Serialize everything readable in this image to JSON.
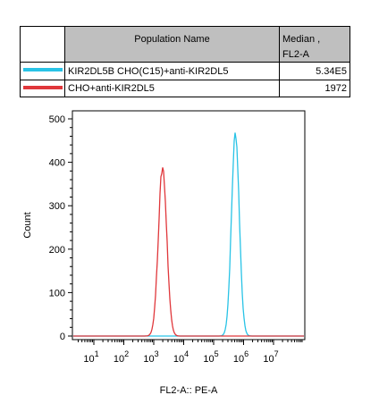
{
  "legend": {
    "header_name": "Population Name",
    "header_stat_line1": "Median ,",
    "header_stat_line2": "FL2-A",
    "rows": [
      {
        "label": "KIR2DL5B CHO(C15)+anti-KIR2DL5",
        "value": "5.34E5",
        "color": "#29c3e6"
      },
      {
        "label": "CHO+anti-KIR2DL5",
        "value": "1972",
        "color": "#e0373b"
      }
    ]
  },
  "chart_data": {
    "type": "line",
    "xlabel": "FL2-A:: PE-A",
    "ylabel": "Count",
    "x_scale": "log",
    "xlim": [
      10,
      10000000
    ],
    "ylim": [
      0,
      500
    ],
    "y_ticks": [
      "0",
      "100",
      "200",
      "300",
      "400",
      "500"
    ],
    "x_ticks": [
      {
        "base": "10",
        "exp": "1"
      },
      {
        "base": "10",
        "exp": "2"
      },
      {
        "base": "10",
        "exp": "3"
      },
      {
        "base": "10",
        "exp": "4"
      },
      {
        "base": "10",
        "exp": "5"
      },
      {
        "base": "10",
        "exp": "6"
      },
      {
        "base": "10",
        "exp": "7"
      }
    ],
    "series": [
      {
        "name": "KIR2DL5B CHO(C15)+anti-KIR2DL5",
        "color": "#29c3e6",
        "peak_x": 534000,
        "peak_y": 467,
        "log_sigma": 0.13
      },
      {
        "name": "CHO+anti-KIR2DL5",
        "color": "#e0373b",
        "peak_x": 1972,
        "peak_y": 388,
        "log_sigma": 0.14
      }
    ]
  }
}
